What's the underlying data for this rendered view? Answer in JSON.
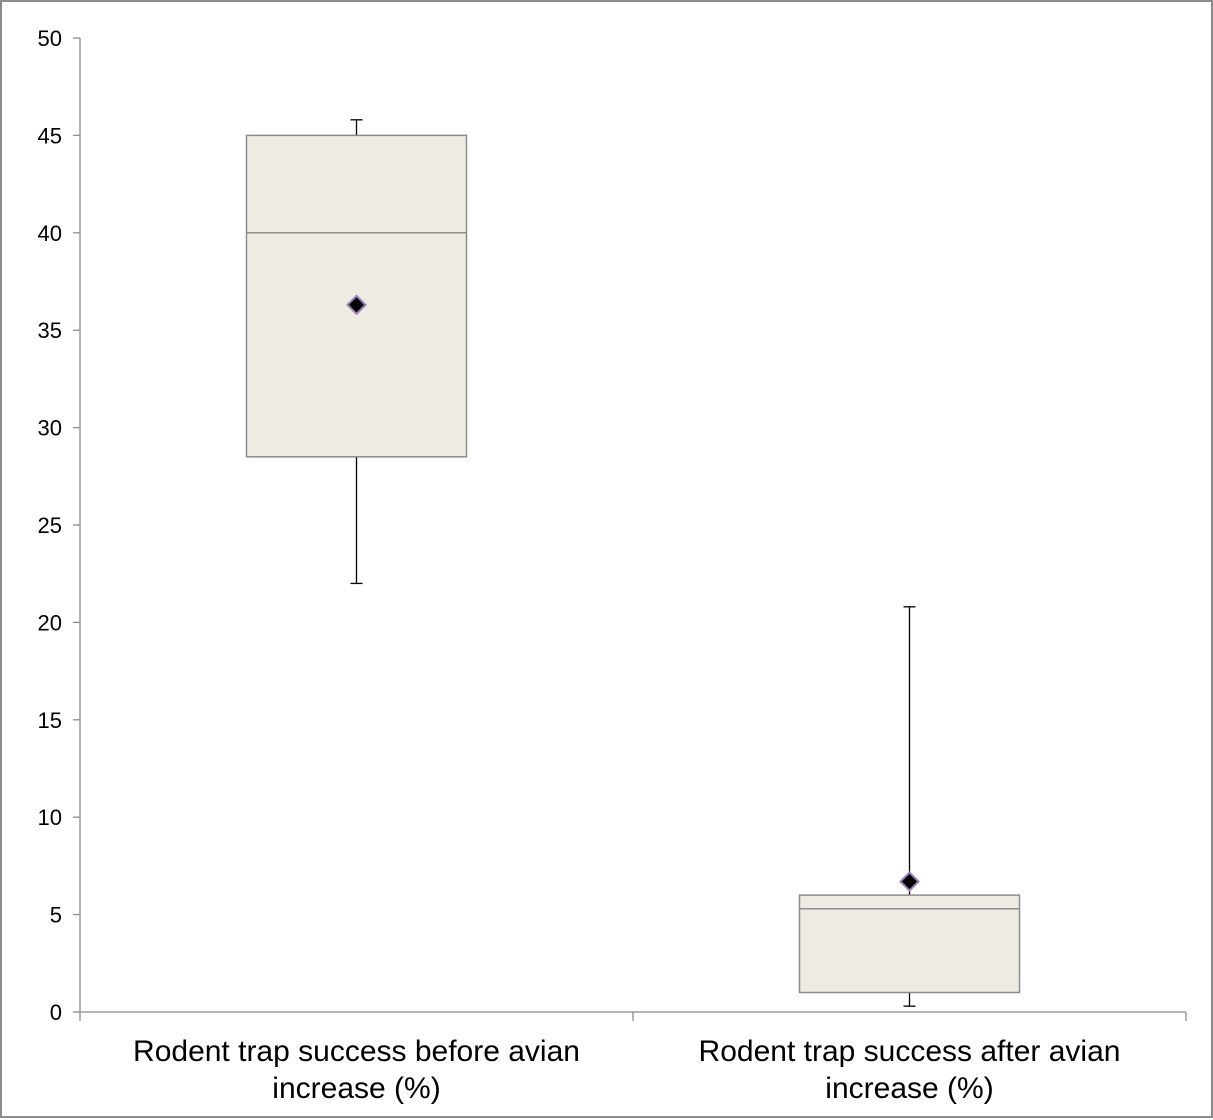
{
  "chart_data": {
    "type": "box",
    "title": "",
    "xlabel": "",
    "ylabel": "",
    "ylim": [
      0,
      50
    ],
    "yticks": [
      0,
      5,
      10,
      15,
      20,
      25,
      30,
      35,
      40,
      45,
      50
    ],
    "grid": false,
    "legend": "none",
    "categories": [
      [
        "Rodent trap success before avian",
        "increase (%)"
      ],
      [
        "Rodent trap success after avian",
        "increase (%)"
      ]
    ],
    "boxes": [
      {
        "min": 22.0,
        "q1": 28.5,
        "median": 40.0,
        "q3": 45.0,
        "max": 45.8,
        "mean": 36.3
      },
      {
        "min": 0.3,
        "q1": 1.0,
        "median": 5.3,
        "q3": 6.0,
        "max": 20.8,
        "mean": 6.7
      }
    ],
    "colors": {
      "box_fill": "#eeebe2",
      "box_stroke": "#8c8c8c",
      "whisker": "#000000",
      "axis": "#8c8c8c",
      "mean_marker_fill": "#000000",
      "mean_marker_stroke": "#9a7fb8"
    }
  }
}
